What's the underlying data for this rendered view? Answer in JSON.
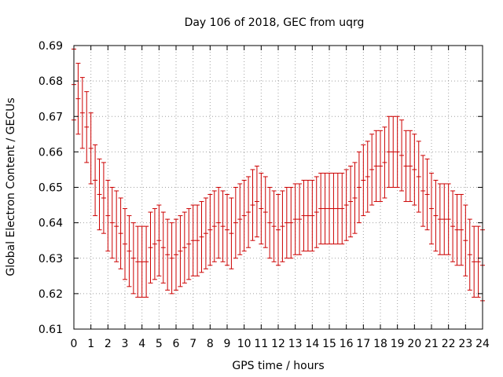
{
  "chart_data": {
    "type": "line",
    "title": "Day 106 of 2018, GEC from uqrg",
    "xlabel": "GPS time / hours",
    "ylabel": "Global Electron Content / GECUs",
    "xlim": [
      0,
      24
    ],
    "ylim": [
      0.61,
      0.69
    ],
    "x_ticks": [
      "0",
      "1",
      "2",
      "3",
      "4",
      "5",
      "6",
      "7",
      "8",
      "9",
      "10",
      "11",
      "12",
      "13",
      "14",
      "15",
      "16",
      "17",
      "18",
      "19",
      "20",
      "21",
      "22",
      "23",
      "24"
    ],
    "y_ticks": [
      "0.61",
      "0.62",
      "0.63",
      "0.64",
      "0.65",
      "0.66",
      "0.67",
      "0.68",
      "0.69"
    ],
    "grid": true,
    "error_bars": true,
    "series_color": "#cc0000",
    "error_bar_halfwidth": 0.01,
    "x": [
      0,
      0.25,
      0.5,
      0.75,
      1,
      1.25,
      1.5,
      1.75,
      2,
      2.25,
      2.5,
      2.75,
      3,
      3.25,
      3.5,
      3.75,
      4,
      4.25,
      4.5,
      4.75,
      5,
      5.25,
      5.5,
      5.75,
      6,
      6.25,
      6.5,
      6.75,
      7,
      7.25,
      7.5,
      7.75,
      8,
      8.25,
      8.5,
      8.75,
      9,
      9.25,
      9.5,
      9.75,
      10,
      10.25,
      10.5,
      10.75,
      11,
      11.25,
      11.5,
      11.75,
      12,
      12.25,
      12.5,
      12.75,
      13,
      13.25,
      13.5,
      13.75,
      14,
      14.25,
      14.5,
      14.75,
      15,
      15.25,
      15.5,
      15.75,
      16,
      16.25,
      16.5,
      16.75,
      17,
      17.25,
      17.5,
      17.75,
      18,
      18.25,
      18.5,
      18.75,
      19,
      19.25,
      19.5,
      19.75,
      20,
      20.25,
      20.5,
      20.75,
      21,
      21.25,
      21.5,
      21.75,
      22,
      22.25,
      22.5,
      22.75,
      23,
      23.25,
      23.5,
      23.75,
      24
    ],
    "values": [
      0.679,
      0.675,
      0.671,
      0.667,
      0.661,
      0.652,
      0.648,
      0.647,
      0.642,
      0.64,
      0.639,
      0.637,
      0.634,
      0.632,
      0.63,
      0.629,
      0.629,
      0.629,
      0.633,
      0.634,
      0.635,
      0.633,
      0.631,
      0.63,
      0.631,
      0.632,
      0.633,
      0.634,
      0.635,
      0.635,
      0.636,
      0.637,
      0.638,
      0.639,
      0.64,
      0.639,
      0.638,
      0.637,
      0.64,
      0.641,
      0.642,
      0.643,
      0.645,
      0.646,
      0.644,
      0.643,
      0.64,
      0.639,
      0.638,
      0.639,
      0.64,
      0.64,
      0.641,
      0.641,
      0.642,
      0.642,
      0.642,
      0.643,
      0.644,
      0.644,
      0.644,
      0.644,
      0.644,
      0.644,
      0.645,
      0.646,
      0.647,
      0.65,
      0.652,
      0.653,
      0.655,
      0.656,
      0.656,
      0.657,
      0.66,
      0.66,
      0.66,
      0.659,
      0.656,
      0.656,
      0.655,
      0.653,
      0.649,
      0.648,
      0.644,
      0.642,
      0.641,
      0.641,
      0.641,
      0.639,
      0.638,
      0.638,
      0.635,
      0.631,
      0.629,
      0.629,
      0.628
    ]
  }
}
